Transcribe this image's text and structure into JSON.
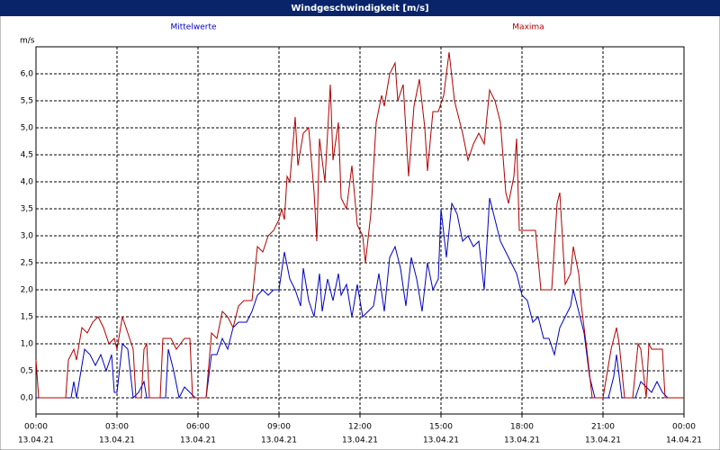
{
  "chart_data": {
    "type": "line",
    "title": "Windgeschwindigkeit [m/s]",
    "y_unit": "m/s",
    "xlim": [
      0,
      24
    ],
    "ylim": [
      -0.3,
      6.5
    ],
    "grid": true,
    "xticks": [
      {
        "value": 0,
        "label": "00:00",
        "date": "13.04.21"
      },
      {
        "value": 3,
        "label": "03:00",
        "date": "13.04.21"
      },
      {
        "value": 6,
        "label": "06:00",
        "date": "13.04.21"
      },
      {
        "value": 9,
        "label": "09:00",
        "date": "13.04.21"
      },
      {
        "value": 12,
        "label": "12:00",
        "date": "13.04.21"
      },
      {
        "value": 15,
        "label": "15:00",
        "date": "13.04.21"
      },
      {
        "value": 18,
        "label": "18:00",
        "date": "13.04.21"
      },
      {
        "value": 21,
        "label": "21:00",
        "date": "13.04.21"
      },
      {
        "value": 24,
        "label": "00:00",
        "date": "14.04.21"
      }
    ],
    "yticks": [
      {
        "value": 0,
        "label": "0,0"
      },
      {
        "value": 0.5,
        "label": "0,5"
      },
      {
        "value": 1,
        "label": "1,0"
      },
      {
        "value": 1.5,
        "label": "1,5"
      },
      {
        "value": 2,
        "label": "2,0"
      },
      {
        "value": 2.5,
        "label": "2,5"
      },
      {
        "value": 3,
        "label": "3,0"
      },
      {
        "value": 3.5,
        "label": "3,5"
      },
      {
        "value": 4,
        "label": "4,0"
      },
      {
        "value": 4.5,
        "label": "4,5"
      },
      {
        "value": 5,
        "label": "5,0"
      },
      {
        "value": 5.5,
        "label": "5,5"
      },
      {
        "value": 6,
        "label": "6,0"
      }
    ],
    "series": [
      {
        "name": "Mittelwerte",
        "color": "#0000c0",
        "x": [
          0,
          1.3,
          1.4,
          1.5,
          1.8,
          2.0,
          2.2,
          2.4,
          2.6,
          2.8,
          2.9,
          3.0,
          3.2,
          3.4,
          3.6,
          3.8,
          4.0,
          4.1,
          4.8,
          4.9,
          5.1,
          5.3,
          5.5,
          5.7,
          5.9,
          6.3,
          6.5,
          6.7,
          6.9,
          7.1,
          7.3,
          7.5,
          7.8,
          8.0,
          8.2,
          8.4,
          8.6,
          8.8,
          9.0,
          9.2,
          9.4,
          9.6,
          9.8,
          9.9,
          10.1,
          10.3,
          10.5,
          10.6,
          10.8,
          11.0,
          11.2,
          11.3,
          11.5,
          11.7,
          11.9,
          12.1,
          12.3,
          12.5,
          12.7,
          12.9,
          13.1,
          13.3,
          13.5,
          13.7,
          13.9,
          14.1,
          14.3,
          14.5,
          14.7,
          14.9,
          15.0,
          15.2,
          15.4,
          15.6,
          15.8,
          16.0,
          16.2,
          16.4,
          16.6,
          16.8,
          17.0,
          17.2,
          17.4,
          17.6,
          17.8,
          18.0,
          18.2,
          18.4,
          18.6,
          18.8,
          19.0,
          19.2,
          19.4,
          19.6,
          19.8,
          19.9,
          20.1,
          20.3,
          20.5,
          20.7,
          21.2,
          21.4,
          21.5,
          21.7,
          22.2,
          22.4,
          22.6,
          22.8,
          23.0,
          23.2,
          23.4,
          24
        ],
        "values": [
          0,
          0,
          0.3,
          0,
          0.9,
          0.8,
          0.6,
          0.8,
          0.5,
          0.8,
          0.1,
          0.1,
          1.0,
          0.9,
          0,
          0.1,
          0.3,
          0,
          0,
          0.9,
          0.5,
          0,
          0.2,
          0.1,
          0,
          0,
          0.8,
          0.8,
          1.1,
          0.9,
          1.3,
          1.4,
          1.4,
          1.6,
          1.9,
          2.0,
          1.9,
          2.0,
          2.0,
          2.7,
          2.2,
          2.0,
          1.7,
          2.4,
          1.8,
          1.5,
          2.3,
          1.6,
          2.2,
          1.8,
          2.3,
          1.9,
          2.1,
          1.5,
          2.1,
          1.5,
          1.6,
          1.7,
          2.3,
          1.6,
          2.6,
          2.8,
          2.4,
          1.7,
          2.6,
          2.2,
          1.6,
          2.5,
          2.0,
          2.2,
          3.5,
          2.6,
          3.6,
          3.4,
          2.9,
          3.0,
          2.8,
          2.9,
          2.0,
          3.7,
          3.3,
          2.9,
          2.7,
          2.5,
          2.3,
          1.9,
          1.8,
          1.4,
          1.5,
          1.1,
          1.1,
          0.8,
          1.3,
          1.5,
          1.7,
          2.0,
          1.6,
          1.2,
          0.4,
          0,
          0,
          0.4,
          0.8,
          0,
          0,
          0.3,
          0.2,
          0.1,
          0.3,
          0.1,
          0,
          0
        ]
      },
      {
        "name": "Maxima",
        "color": "#b00000",
        "x": [
          0,
          0.1,
          1.1,
          1.2,
          1.4,
          1.5,
          1.7,
          1.9,
          2.1,
          2.3,
          2.5,
          2.7,
          2.9,
          3.0,
          3.2,
          3.4,
          3.6,
          3.7,
          3.9,
          4.0,
          4.1,
          4.2,
          4.6,
          4.7,
          5.0,
          5.2,
          5.5,
          5.7,
          5.8,
          6.3,
          6.5,
          6.7,
          6.9,
          7.1,
          7.3,
          7.5,
          7.7,
          8.0,
          8.2,
          8.4,
          8.6,
          8.8,
          9.0,
          9.1,
          9.2,
          9.3,
          9.4,
          9.6,
          9.7,
          9.9,
          10.1,
          10.3,
          10.4,
          10.5,
          10.7,
          10.9,
          11.0,
          11.2,
          11.3,
          11.5,
          11.7,
          11.9,
          12.1,
          12.2,
          12.4,
          12.6,
          12.8,
          12.9,
          13.1,
          13.3,
          13.4,
          13.6,
          13.8,
          14.0,
          14.2,
          14.4,
          14.5,
          14.7,
          14.9,
          15.1,
          15.3,
          15.5,
          15.8,
          16.0,
          16.2,
          16.4,
          16.6,
          16.8,
          17.0,
          17.2,
          17.4,
          17.5,
          17.7,
          17.8,
          17.9,
          18.5,
          18.7,
          19.1,
          19.3,
          19.4,
          19.6,
          19.8,
          19.9,
          20.1,
          20.2,
          20.4,
          20.6,
          21.0,
          21.1,
          21.3,
          21.5,
          21.6,
          21.8,
          22.1,
          22.3,
          22.4,
          22.6,
          22.7,
          22.8,
          23.0,
          23.2,
          23.3,
          24
        ],
        "values": [
          0.7,
          0,
          0,
          0.7,
          0.9,
          0.7,
          1.3,
          1.2,
          1.4,
          1.5,
          1.3,
          1.0,
          1.1,
          0.9,
          1.5,
          1.2,
          0.9,
          0,
          0,
          0.9,
          1.0,
          0,
          0,
          1.1,
          1.1,
          0.9,
          1.1,
          1.1,
          0,
          0,
          1.2,
          1.1,
          1.6,
          1.5,
          1.3,
          1.7,
          1.8,
          1.8,
          2.8,
          2.7,
          3.0,
          3.1,
          3.3,
          3.5,
          3.3,
          4.1,
          4.0,
          5.2,
          4.3,
          4.9,
          5.0,
          3.8,
          2.9,
          4.8,
          4.0,
          5.8,
          4.4,
          5.1,
          3.7,
          3.5,
          4.3,
          3.2,
          3.0,
          2.5,
          3.4,
          5.1,
          5.6,
          5.4,
          6.0,
          6.2,
          5.5,
          5.8,
          4.1,
          5.4,
          5.9,
          5.0,
          4.2,
          5.3,
          5.3,
          5.6,
          6.4,
          5.5,
          4.9,
          4.4,
          4.7,
          4.9,
          4.7,
          5.7,
          5.5,
          5.1,
          3.8,
          3.6,
          4.1,
          4.8,
          3.1,
          3.1,
          2.0,
          2.0,
          3.6,
          3.8,
          2.1,
          2.3,
          2.8,
          2.3,
          1.7,
          0.9,
          0,
          0,
          0.3,
          0.9,
          1.3,
          1.0,
          0,
          0,
          1.0,
          0.9,
          0,
          1.0,
          0.9,
          0.9,
          0.9,
          0,
          0
        ]
      }
    ]
  }
}
